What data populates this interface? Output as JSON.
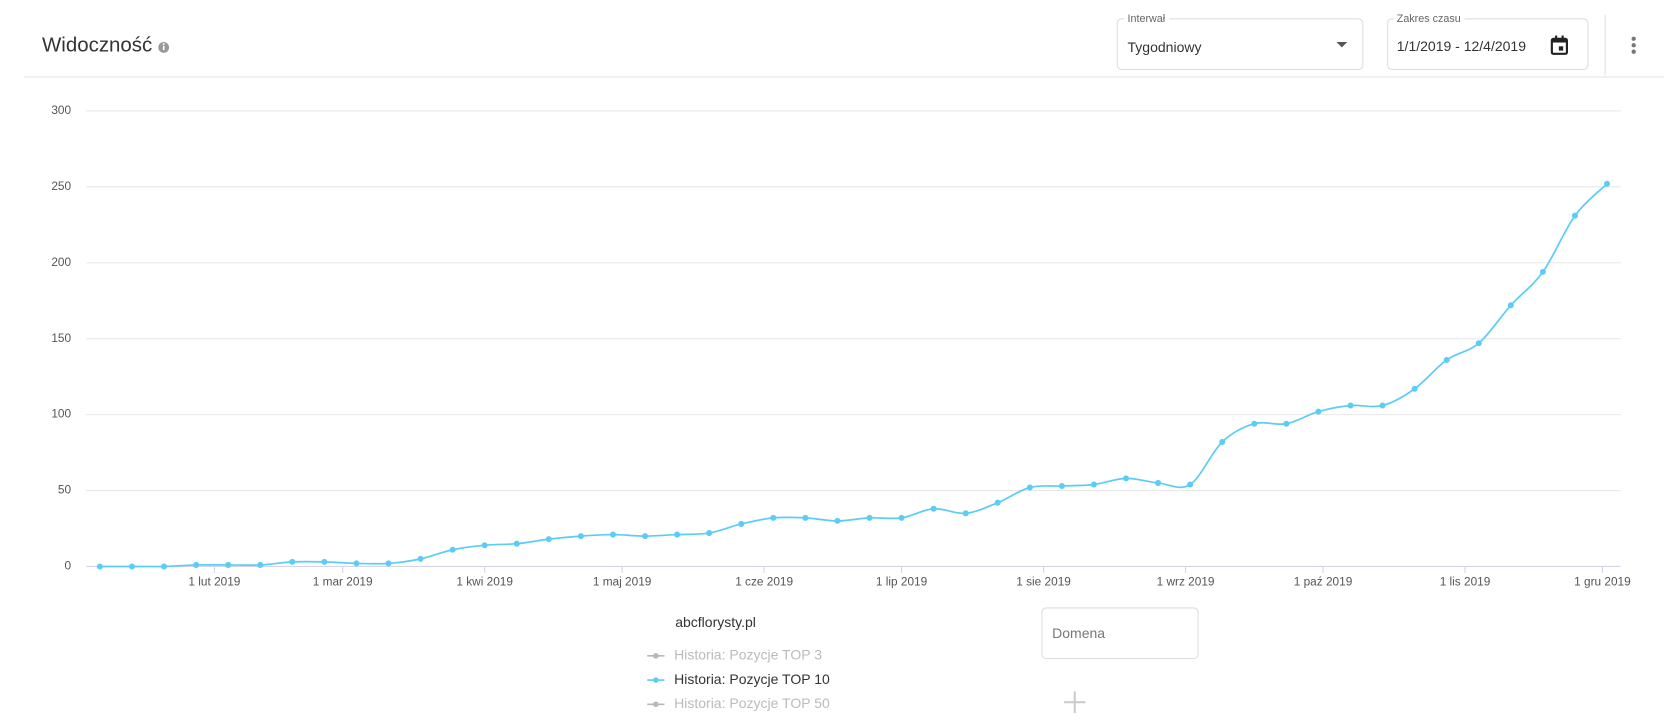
{
  "header": {
    "title": "Widoczność",
    "interval": {
      "label": "Interwał",
      "value": "Tygodniowy"
    },
    "date_range": {
      "label": "Zakres czasu",
      "value": "1/1/2019 - 12/4/2019"
    }
  },
  "domain_input": {
    "placeholder": "Domena"
  },
  "chart_data": {
    "type": "line",
    "legend_title": "abcflorysty.pl",
    "grid": true,
    "smooth": true,
    "x": [
      "2019-01-07",
      "2019-01-14",
      "2019-01-21",
      "2019-01-28",
      "2019-02-04",
      "2019-02-11",
      "2019-02-18",
      "2019-02-25",
      "2019-03-04",
      "2019-03-11",
      "2019-03-18",
      "2019-03-25",
      "2019-04-01",
      "2019-04-08",
      "2019-04-15",
      "2019-04-22",
      "2019-04-29",
      "2019-05-06",
      "2019-05-13",
      "2019-05-20",
      "2019-05-27",
      "2019-06-03",
      "2019-06-10",
      "2019-06-17",
      "2019-06-24",
      "2019-07-01",
      "2019-07-08",
      "2019-07-15",
      "2019-07-22",
      "2019-07-29",
      "2019-08-05",
      "2019-08-12",
      "2019-08-19",
      "2019-08-26",
      "2019-09-02",
      "2019-09-09",
      "2019-09-16",
      "2019-09-23",
      "2019-09-30",
      "2019-10-07",
      "2019-10-14",
      "2019-10-21",
      "2019-10-28",
      "2019-11-04",
      "2019-11-11",
      "2019-11-18",
      "2019-11-25",
      "2019-12-02"
    ],
    "series": [
      {
        "name": "Historia: Pozycje TOP 3",
        "color": "#b8b8b8",
        "visible": false
      },
      {
        "name": "Historia: Pozycje TOP 10",
        "color": "#5bcdf5",
        "visible": true,
        "values": [
          0,
          0,
          0,
          1,
          1,
          1,
          3,
          3,
          2,
          2,
          5,
          11,
          14,
          15,
          18,
          20,
          21,
          20,
          21,
          22,
          28,
          32,
          32,
          30,
          32,
          32,
          38,
          35,
          42,
          52,
          53,
          54,
          58,
          55,
          54,
          82,
          94,
          94,
          102,
          106,
          106,
          117,
          136,
          147,
          172,
          194,
          231,
          252
        ]
      },
      {
        "name": "Historia: Pozycje TOP 50",
        "color": "#b8b8b8",
        "visible": false
      }
    ],
    "xlim": [
      "2019-01-04",
      "2019-12-05"
    ],
    "xticks": [
      {
        "value": "2019-02-01",
        "label": "1 lut 2019"
      },
      {
        "value": "2019-03-01",
        "label": "1 mar 2019"
      },
      {
        "value": "2019-04-01",
        "label": "1 kwi 2019"
      },
      {
        "value": "2019-05-01",
        "label": "1 maj 2019"
      },
      {
        "value": "2019-06-01",
        "label": "1 cze 2019"
      },
      {
        "value": "2019-07-01",
        "label": "1 lip 2019"
      },
      {
        "value": "2019-08-01",
        "label": "1 sie 2019"
      },
      {
        "value": "2019-09-01",
        "label": "1 wrz 2019"
      },
      {
        "value": "2019-10-01",
        "label": "1 paź 2019"
      },
      {
        "value": "2019-11-01",
        "label": "1 lis 2019"
      },
      {
        "value": "2019-12-01",
        "label": "1 gru 2019"
      }
    ],
    "ylim": [
      0,
      300
    ],
    "yticks": [
      0,
      50,
      100,
      150,
      200,
      250,
      300
    ]
  }
}
